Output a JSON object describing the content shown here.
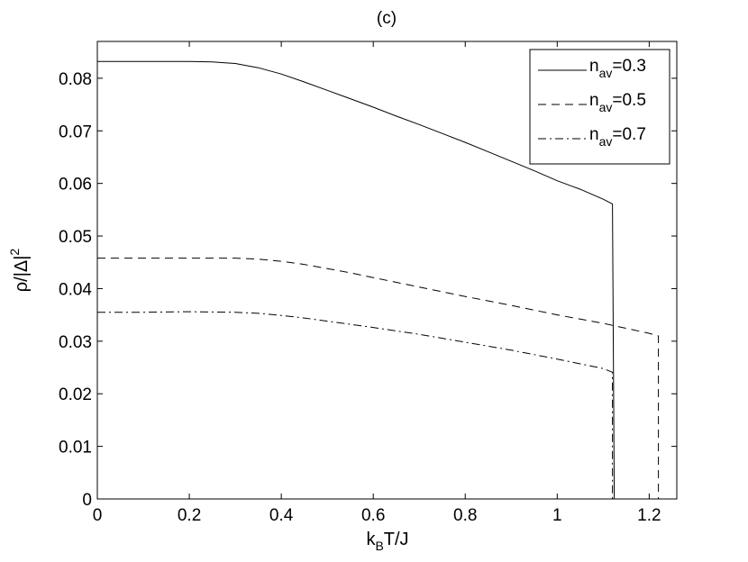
{
  "chart_data": {
    "type": "line",
    "title": "(c)",
    "xlabel": {
      "main": "k",
      "sub": "B",
      "rest": "T/J"
    },
    "ylabel": {
      "main": "ρ/|Δ|",
      "sup": "2"
    },
    "xlim": [
      0,
      1.26
    ],
    "ylim": [
      0,
      0.087
    ],
    "xticks": [
      0,
      0.2,
      0.4,
      0.6,
      0.8,
      1,
      1.2
    ],
    "xtick_labels": [
      "0",
      "0.2",
      "0.4",
      "0.6",
      "0.8",
      "1",
      "1.2"
    ],
    "yticks": [
      0,
      0.01,
      0.02,
      0.03,
      0.04,
      0.05,
      0.06,
      0.07,
      0.08
    ],
    "ytick_labels": [
      "0",
      "0.01",
      "0.02",
      "0.03",
      "0.04",
      "0.05",
      "0.06",
      "0.07",
      "0.08"
    ],
    "grid": false,
    "legend_position": "top-right",
    "series": [
      {
        "name": "n_av=0.3",
        "legend_main": "n",
        "legend_sub": "av",
        "legend_rest": "=0.3",
        "dash": "solid",
        "x": [
          0,
          0.1,
          0.2,
          0.25,
          0.3,
          0.35,
          0.4,
          0.45,
          0.5,
          0.55,
          0.6,
          0.65,
          0.7,
          0.75,
          0.8,
          0.85,
          0.9,
          0.95,
          1.0,
          1.05,
          1.1,
          1.12,
          1.12,
          1.124
        ],
        "y": [
          0.0832,
          0.0832,
          0.0832,
          0.0831,
          0.0828,
          0.082,
          0.0808,
          0.0793,
          0.0777,
          0.0761,
          0.0745,
          0.0728,
          0.0712,
          0.0695,
          0.0678,
          0.066,
          0.0642,
          0.0624,
          0.0605,
          0.0589,
          0.057,
          0.0561,
          0.0561,
          0
        ]
      },
      {
        "name": "n_av=0.5",
        "legend_main": "n",
        "legend_sub": "av",
        "legend_rest": "=0.5",
        "dash": "dashed",
        "x": [
          0,
          0.1,
          0.2,
          0.3,
          0.35,
          0.4,
          0.45,
          0.5,
          0.55,
          0.6,
          0.7,
          0.8,
          0.9,
          1.0,
          1.1,
          1.2,
          1.22,
          1.22
        ],
        "y": [
          0.0458,
          0.0458,
          0.0458,
          0.0458,
          0.0456,
          0.0452,
          0.0446,
          0.0438,
          0.043,
          0.0421,
          0.0403,
          0.0385,
          0.0368,
          0.035,
          0.0334,
          0.0315,
          0.031,
          0
        ]
      },
      {
        "name": "n_av=0.7",
        "legend_main": "n",
        "legend_sub": "av",
        "legend_rest": "=0.7",
        "dash": "dashdot",
        "x": [
          0,
          0.1,
          0.2,
          0.3,
          0.35,
          0.4,
          0.45,
          0.5,
          0.55,
          0.6,
          0.7,
          0.8,
          0.9,
          1.0,
          1.1,
          1.12,
          1.12
        ],
        "y": [
          0.0355,
          0.0355,
          0.0356,
          0.0355,
          0.0353,
          0.0349,
          0.0344,
          0.0338,
          0.0332,
          0.0326,
          0.0313,
          0.0298,
          0.0283,
          0.0266,
          0.0248,
          0.0241,
          0
        ]
      }
    ]
  }
}
